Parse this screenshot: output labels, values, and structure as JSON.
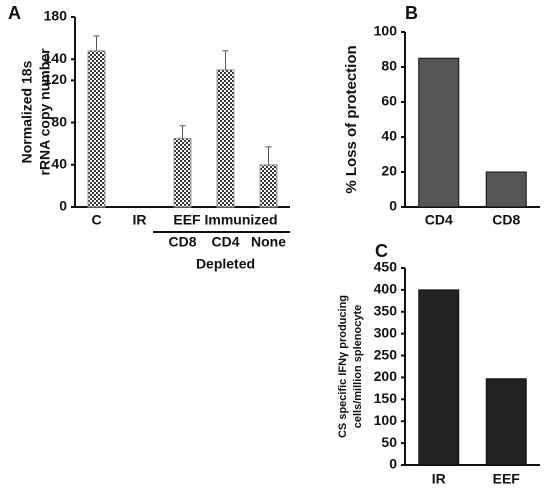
{
  "chart_data": [
    {
      "type": "bar",
      "panel": "A",
      "ylabel": [
        "Normalized 18s",
        "rRNA copy number"
      ],
      "categories": [
        "C",
        "IR",
        "CD8",
        "CD4",
        "None"
      ],
      "values": [
        148,
        0,
        65,
        130,
        40
      ],
      "errors": [
        14,
        null,
        12,
        18,
        17
      ],
      "color": "#999999",
      "pattern": "checker",
      "annotations": [
        "EEF Immunized",
        "Depleted"
      ],
      "ylim": [
        0,
        180
      ],
      "yticks": [
        0,
        40,
        80,
        120,
        140,
        180
      ]
    },
    {
      "type": "bar",
      "panel": "B",
      "ylabel": [
        "% Loss of protection"
      ],
      "categories": [
        "CD4",
        "CD8"
      ],
      "values": [
        85,
        20
      ],
      "color": "#555555",
      "ylim": [
        0,
        100
      ],
      "yticks": [
        0,
        20,
        40,
        60,
        80,
        100
      ]
    },
    {
      "type": "bar",
      "panel": "C",
      "ylabel": [
        "CS specific IFNγ producing",
        "cells/million splenocyte"
      ],
      "categories": [
        "IR",
        "EEF"
      ],
      "values": [
        400,
        197
      ],
      "color": "#222222",
      "ylim": [
        0,
        450
      ],
      "yticks": [
        0,
        50,
        100,
        150,
        200,
        250,
        300,
        350,
        400,
        450
      ]
    }
  ]
}
